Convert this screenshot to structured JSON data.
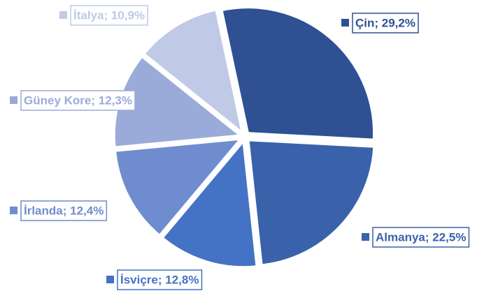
{
  "chart_data": {
    "type": "pie",
    "values": [
      29.2,
      22.5,
      12.8,
      12.4,
      12.3,
      10.9
    ],
    "value_labels": [
      "Çin; 29,2%",
      "Almanya; 22,5%",
      "İsviçre; 12,8%",
      "İrlanda; 12,4%",
      "Güney Kore; 12,3%",
      "İtalya; 10,9%"
    ],
    "colors": [
      "#2f5193",
      "#3a62ab",
      "#4472c4",
      "#6f8ccf",
      "#9aabd9",
      "#c0cae6"
    ]
  }
}
